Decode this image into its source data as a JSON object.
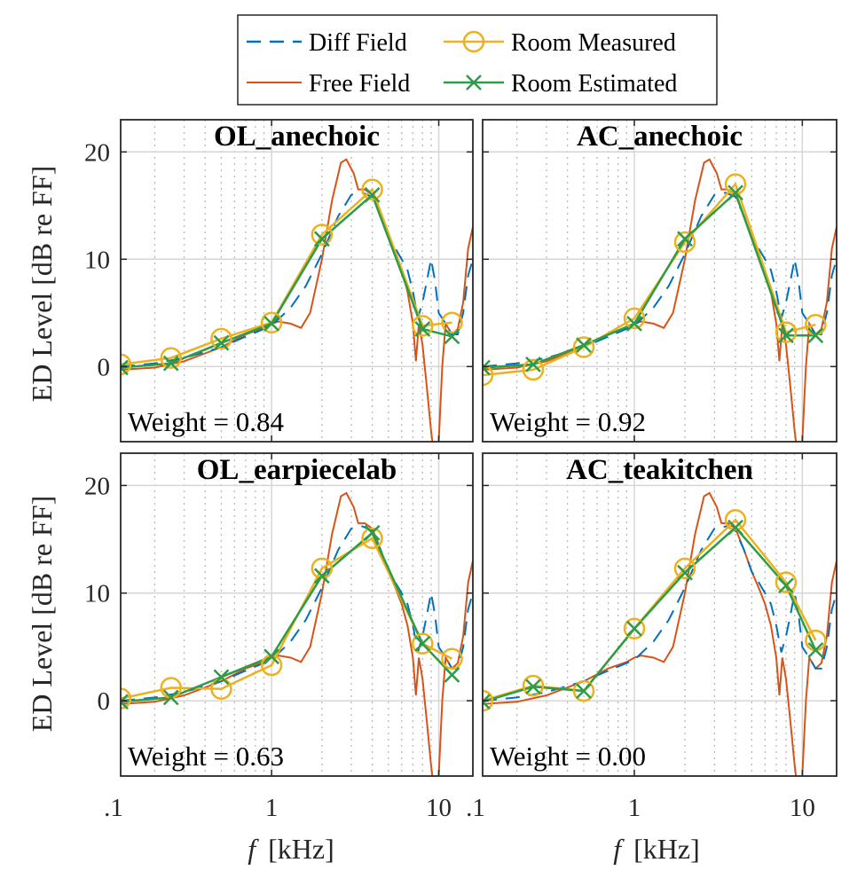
{
  "colors": {
    "diff_field": "#0072BD",
    "free_field": "#D95319",
    "room_measured": "#EDB120",
    "room_estimated": "#2E9B46",
    "axis": "#262626",
    "grid": "#b8b8b8"
  },
  "chart_data": {
    "type": "line",
    "xlabel": "[kHz]",
    "xlabel_var": "f",
    "ylabel": "ED Level [dB re FF]",
    "xscale": "log",
    "xlim": [
      0.125,
      16
    ],
    "ylim": [
      -7,
      23
    ],
    "xticks": [
      0.1,
      1,
      10
    ],
    "xtick_labels": [
      ".1",
      "1",
      "10"
    ],
    "yticks": [
      0,
      10,
      20
    ],
    "ytick_labels": [
      "0",
      "10",
      "20"
    ],
    "grid": true,
    "legend": {
      "placement": "top-center",
      "entries": [
        "Diff Field",
        "Room Measured",
        "Free Field",
        "Room Estimated"
      ]
    },
    "reference_curves": {
      "diff_field": {
        "name": "Diff Field",
        "x": [
          0.125,
          0.2,
          0.3,
          0.5,
          0.7,
          1.0,
          1.3,
          1.6,
          2.0,
          2.5,
          3.0,
          3.5,
          4.0,
          4.5,
          5.0,
          5.5,
          6.0,
          6.5,
          7.0,
          7.5,
          8.0,
          8.5,
          9.0,
          9.5,
          10.0,
          11.0,
          12.0,
          13.0,
          14.0,
          15.0,
          16.0
        ],
        "y": [
          0.0,
          0.3,
          0.8,
          1.8,
          2.8,
          3.8,
          5.5,
          7.5,
          10.5,
          14.0,
          16.0,
          16.2,
          15.8,
          14.0,
          12.0,
          11.0,
          10.0,
          9.0,
          7.0,
          4.5,
          6.0,
          8.0,
          10.0,
          8.0,
          5.0,
          4.0,
          3.0,
          3.0,
          5.0,
          8.5,
          10.0
        ]
      },
      "free_field": {
        "name": "Free Field",
        "x": [
          0.125,
          0.2,
          0.3,
          0.5,
          0.7,
          0.9,
          1.0,
          1.1,
          1.3,
          1.5,
          1.7,
          2.0,
          2.3,
          2.6,
          2.8,
          3.1,
          3.3,
          3.6,
          4.0,
          4.5,
          5.0,
          5.5,
          6.0,
          6.5,
          7.0,
          7.3,
          7.6,
          8.0,
          8.5,
          9.0,
          9.5,
          10.0,
          10.5,
          11.0,
          12.0,
          13.0,
          14.0,
          15.0,
          16.0
        ],
        "y": [
          -0.3,
          -0.1,
          0.5,
          1.8,
          3.0,
          3.6,
          4.0,
          4.2,
          4.0,
          3.6,
          5.0,
          10.0,
          15.5,
          19.0,
          19.3,
          18.0,
          16.5,
          16.5,
          16.0,
          14.0,
          12.0,
          10.5,
          9.0,
          7.0,
          4.0,
          0.5,
          4.0,
          2.0,
          -2.0,
          -6.0,
          -9.0,
          -7.0,
          0.0,
          4.0,
          3.0,
          3.5,
          6.0,
          11.0,
          13.0
        ]
      }
    },
    "panels": [
      {
        "title": "OL_anechoic",
        "weight_label": "Weight = 0.84",
        "octave_bands_khz": [
          0.125,
          0.25,
          0.5,
          1,
          2,
          4,
          8,
          12
        ],
        "series": [
          {
            "name": "Room Measured",
            "values": [
              0.2,
              0.8,
              2.6,
              4.1,
              12.3,
              16.5,
              3.8,
              4.1
            ]
          },
          {
            "name": "Room Estimated",
            "values": [
              -0.1,
              0.3,
              2.2,
              4.0,
              11.9,
              16.0,
              3.5,
              2.8
            ]
          }
        ]
      },
      {
        "title": "AC_anechoic",
        "weight_label": "Weight = 0.92",
        "octave_bands_khz": [
          0.125,
          0.25,
          0.5,
          1,
          2,
          4,
          8,
          12
        ],
        "series": [
          {
            "name": "Room Measured",
            "values": [
              -0.8,
              -0.3,
              1.8,
              4.5,
              11.6,
              17.0,
              3.2,
              3.9
            ]
          },
          {
            "name": "Room Estimated",
            "values": [
              -0.1,
              0.2,
              2.0,
              4.0,
              11.9,
              16.2,
              2.9,
              2.9
            ]
          }
        ]
      },
      {
        "title": "OL_earpiecelab",
        "weight_label": "Weight = 0.63",
        "octave_bands_khz": [
          0.125,
          0.25,
          0.5,
          1,
          2,
          4,
          8,
          12
        ],
        "series": [
          {
            "name": "Room Measured",
            "values": [
              0.2,
              1.2,
              1.1,
              3.3,
              12.3,
              15.1,
              5.3,
              3.9
            ]
          },
          {
            "name": "Room Estimated",
            "values": [
              -0.1,
              0.3,
              2.2,
              4.1,
              11.6,
              15.6,
              5.3,
              2.4
            ]
          }
        ]
      },
      {
        "title": "AC_teakitchen",
        "weight_label": "Weight = 0.00",
        "octave_bands_khz": [
          0.125,
          0.25,
          0.5,
          1,
          2,
          4,
          8,
          12
        ],
        "series": [
          {
            "name": "Room Measured",
            "values": [
              0.0,
              1.4,
              0.9,
              6.7,
              12.3,
              16.8,
              11.0,
              5.6
            ]
          },
          {
            "name": "Room Estimated",
            "values": [
              -0.1,
              1.3,
              0.9,
              6.7,
              11.9,
              16.1,
              10.7,
              4.7
            ]
          }
        ]
      }
    ]
  }
}
